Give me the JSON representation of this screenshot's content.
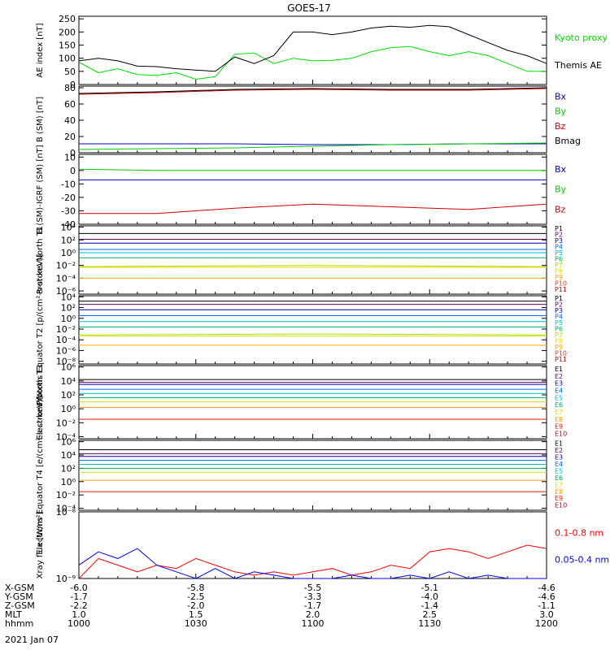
{
  "title": "GOES-17",
  "date_label": "2021 Jan 07",
  "chart_data": [
    {
      "type": "line",
      "ylabel": "AE index [nT]",
      "yticks": [
        0,
        50,
        100,
        150,
        200,
        250
      ],
      "ylim": [
        0,
        260
      ],
      "x": [
        1000,
        1005,
        1010,
        1015,
        1020,
        1025,
        1030,
        1035,
        1040,
        1045,
        1050,
        1055,
        1100,
        1105,
        1110,
        1115,
        1120,
        1125,
        1130,
        1135,
        1140,
        1145,
        1150,
        1155,
        1200
      ],
      "series": [
        {
          "name": "Kyoto proxy AE",
          "color": "#00dd00",
          "values": [
            85,
            45,
            60,
            38,
            35,
            45,
            20,
            30,
            115,
            120,
            80,
            100,
            90,
            92,
            100,
            125,
            140,
            145,
            125,
            110,
            125,
            110,
            80,
            50,
            50
          ]
        },
        {
          "name": "Themis AE",
          "color": "#000000",
          "values": [
            90,
            100,
            90,
            70,
            68,
            60,
            55,
            50,
            105,
            80,
            110,
            200,
            200,
            190,
            200,
            215,
            222,
            218,
            225,
            220,
            190,
            160,
            130,
            110,
            80
          ]
        }
      ]
    },
    {
      "type": "line",
      "ylabel": "B (SM) [nT]",
      "yticks": [
        0,
        20,
        40,
        60,
        80
      ],
      "ylim": [
        0,
        82
      ],
      "x": [
        1000,
        1020,
        1040,
        1100,
        1120,
        1140,
        1200
      ],
      "series": [
        {
          "name": "Bx",
          "color": "#0000cc",
          "values": [
            11,
            11,
            11,
            10,
            10,
            11,
            11
          ]
        },
        {
          "name": "By",
          "color": "#00cc00",
          "values": [
            4,
            5,
            6,
            8,
            10,
            11,
            12
          ]
        },
        {
          "name": "Bz",
          "color": "#cc0000",
          "values": [
            72,
            74,
            77,
            78,
            77,
            77,
            79
          ]
        },
        {
          "name": "Bmag",
          "color": "#000000",
          "values": [
            73,
            75,
            78,
            79,
            78,
            78,
            80
          ]
        }
      ]
    },
    {
      "type": "line",
      "ylabel": "B (SM)-IGRF (SM) [nT]",
      "yticks": [
        -40,
        -30,
        -20,
        -10,
        0,
        10
      ],
      "ylim": [
        -40,
        12
      ],
      "x": [
        1000,
        1020,
        1040,
        1100,
        1120,
        1140,
        1200
      ],
      "series": [
        {
          "name": "Bx",
          "color": "#0000cc",
          "values": [
            -7,
            -7,
            -7,
            -7,
            -7,
            -7,
            -7
          ]
        },
        {
          "name": "By",
          "color": "#00cc00",
          "values": [
            1,
            0,
            0,
            0,
            0,
            0,
            0
          ]
        },
        {
          "name": "Bz",
          "color": "#cc0000",
          "values": [
            -32,
            -32,
            -28,
            -25,
            -27,
            -29,
            -25
          ]
        }
      ]
    },
    {
      "type": "line",
      "ylabel": "Protons North T1",
      "log_scale": true,
      "yticks": [
        "10⁴",
        "10²",
        "10⁰",
        "10⁻²",
        "10⁻⁴",
        "10⁻⁶"
      ],
      "ylim": [
        -6.5,
        4.2
      ],
      "x": [
        1000,
        1100,
        1200
      ],
      "series": [
        {
          "name": "P1",
          "color": "#000000",
          "values": [
            3.0,
            3.0,
            3.0
          ]
        },
        {
          "name": "P2",
          "color": "#660066",
          "values": [
            2.1,
            2.1,
            2.1
          ]
        },
        {
          "name": "P3",
          "color": "#0000aa",
          "values": [
            1.5,
            1.5,
            1.5
          ]
        },
        {
          "name": "P4",
          "color": "#0066ff",
          "values": [
            0.5,
            0.5,
            0.5
          ]
        },
        {
          "name": "P5",
          "color": "#00bbbb",
          "values": [
            0.0,
            0.0,
            0.0
          ]
        },
        {
          "name": "P6",
          "color": "#00aa66",
          "values": [
            -0.8,
            -0.8,
            -0.8
          ]
        },
        {
          "name": "P7",
          "color": "#aadd00",
          "values": [
            -2.2,
            -2.0,
            -2.2
          ]
        },
        {
          "name": "P8",
          "color": "#dddd00",
          "values": [
            -2.3,
            -2.3,
            -2.3
          ]
        },
        {
          "name": "P9",
          "color": "#ffaa00",
          "values": [
            -4.0,
            -4.0,
            -4.0
          ]
        },
        {
          "name": "P10",
          "color": "#ff3300",
          "values": [
            null,
            null,
            null
          ]
        },
        {
          "name": "P11",
          "color": "#cc0000",
          "values": [
            null,
            null,
            null
          ]
        }
      ]
    },
    {
      "type": "line",
      "ylabel": "Protons Equator T2 [p/(cm²-s-sr-keV)]",
      "log_scale": true,
      "yticks": [
        "10⁴",
        "10²",
        "10⁰",
        "10⁻²",
        "10⁻⁴",
        "10⁻⁶",
        "10⁻⁸"
      ],
      "ylim": [
        -8.5,
        4.2
      ],
      "x": [
        1000,
        1100,
        1200
      ],
      "series": [
        {
          "name": "P1",
          "color": "#000000",
          "values": [
            3.2,
            3.2,
            3.2
          ]
        },
        {
          "name": "P2",
          "color": "#660066",
          "values": [
            2.6,
            2.6,
            2.6
          ]
        },
        {
          "name": "P3",
          "color": "#0000aa",
          "values": [
            1.6,
            1.6,
            1.6
          ]
        },
        {
          "name": "P4",
          "color": "#0066ff",
          "values": [
            0.5,
            0.5,
            0.5
          ]
        },
        {
          "name": "P5",
          "color": "#00bbbb",
          "values": [
            -0.6,
            -0.6,
            -0.6
          ]
        },
        {
          "name": "P6",
          "color": "#00aa66",
          "values": [
            -1.6,
            -1.6,
            -1.6
          ]
        },
        {
          "name": "P7",
          "color": "#aadd00",
          "values": [
            -3.1,
            -2.9,
            -3.1
          ]
        },
        {
          "name": "P8",
          "color": "#dddd00",
          "values": [
            -3.3,
            -3.3,
            -3.3
          ]
        },
        {
          "name": "P9",
          "color": "#ffaa00",
          "values": [
            -5.0,
            -5.0,
            -5.0
          ]
        },
        {
          "name": "P10",
          "color": "#ff3300",
          "values": [
            null,
            null,
            null
          ]
        },
        {
          "name": "P11",
          "color": "#cc0000",
          "values": [
            null,
            null,
            null
          ]
        }
      ]
    },
    {
      "type": "line",
      "ylabel": "Electrons North T3",
      "log_scale": true,
      "yticks": [
        "10⁶",
        "10⁴",
        "10²",
        "10⁰",
        "10⁻²",
        "10⁻⁴"
      ],
      "ylim": [
        -4.3,
        6.2
      ],
      "x": [
        1000,
        1100,
        1200
      ],
      "series": [
        {
          "name": "E1",
          "color": "#000000",
          "values": [
            4.2,
            4.2,
            4.2
          ]
        },
        {
          "name": "E2",
          "color": "#660066",
          "values": [
            3.8,
            3.8,
            3.8
          ]
        },
        {
          "name": "E3",
          "color": "#0000aa",
          "values": [
            3.5,
            3.5,
            3.5
          ]
        },
        {
          "name": "E4",
          "color": "#0066ff",
          "values": [
            2.8,
            2.8,
            2.8
          ]
        },
        {
          "name": "E5",
          "color": "#00bbbb",
          "values": [
            2.2,
            2.2,
            2.2
          ]
        },
        {
          "name": "E6",
          "color": "#00aa66",
          "values": [
            1.6,
            1.6,
            1.6
          ]
        },
        {
          "name": "E7",
          "color": "#dddd00",
          "values": [
            1.0,
            1.0,
            1.0
          ]
        },
        {
          "name": "E8",
          "color": "#ff9900",
          "values": [
            0.2,
            0.2,
            0.2
          ]
        },
        {
          "name": "E9",
          "color": "#dd2200",
          "values": [
            -1.5,
            -1.5,
            -1.5
          ]
        },
        {
          "name": "E10",
          "color": "#cc0000",
          "values": [
            null,
            null,
            null
          ]
        }
      ]
    },
    {
      "type": "line",
      "ylabel": "Electrons Equator T4 [e/(cm²-s-sr-keV)]",
      "log_scale": true,
      "yticks": [
        "10⁶",
        "10⁴",
        "10²",
        "10⁰",
        "10⁻²",
        "10⁻⁴"
      ],
      "ylim": [
        -4.3,
        6.2
      ],
      "x": [
        1000,
        1100,
        1200
      ],
      "series": [
        {
          "name": "E1",
          "color": "#000000",
          "values": [
            4.8,
            4.8,
            4.8
          ]
        },
        {
          "name": "E2",
          "color": "#660066",
          "values": [
            4.2,
            4.2,
            4.2
          ]
        },
        {
          "name": "E3",
          "color": "#0000aa",
          "values": [
            3.8,
            3.8,
            3.8
          ]
        },
        {
          "name": "E4",
          "color": "#0066ff",
          "values": [
            3.2,
            3.2,
            3.2
          ]
        },
        {
          "name": "E5",
          "color": "#00bbbb",
          "values": [
            2.6,
            2.6,
            2.6
          ]
        },
        {
          "name": "E6",
          "color": "#00aa66",
          "values": [
            2.0,
            2.0,
            2.0
          ]
        },
        {
          "name": "E7",
          "color": "#dddd00",
          "values": [
            1.4,
            1.4,
            1.4
          ]
        },
        {
          "name": "E8",
          "color": "#ff9900",
          "values": [
            0.2,
            0.2,
            0.2
          ]
        },
        {
          "name": "E9",
          "color": "#dd2200",
          "values": [
            -1.5,
            -1.5,
            -1.5
          ]
        },
        {
          "name": "E10",
          "color": "#cc0000",
          "values": [
            null,
            null,
            null
          ]
        }
      ]
    },
    {
      "type": "line",
      "ylabel": "Xray flux [W/m²]",
      "log_scale": true,
      "yticks": [
        "10⁻⁸",
        "10⁻⁹"
      ],
      "ylim": [
        -9.0,
        -8.0
      ],
      "x": [
        1000,
        1005,
        1010,
        1015,
        1020,
        1025,
        1030,
        1035,
        1040,
        1045,
        1050,
        1055,
        1100,
        1105,
        1110,
        1115,
        1120,
        1125,
        1130,
        1135,
        1140,
        1145,
        1150,
        1155,
        1200
      ],
      "series": [
        {
          "name": "0.1-0.8 nm",
          "color": "#ff0000",
          "values": [
            -9.0,
            -8.7,
            -8.8,
            -8.9,
            -8.8,
            -8.85,
            -8.7,
            -8.8,
            -8.9,
            -8.95,
            -8.9,
            -8.95,
            -8.9,
            -8.85,
            -8.95,
            -8.9,
            -8.8,
            -8.85,
            -8.6,
            -8.55,
            -8.6,
            -8.7,
            -8.6,
            -8.5,
            -8.55
          ]
        },
        {
          "name": "0.05-0.4 nm",
          "color": "#0000ff",
          "values": [
            -8.8,
            -8.6,
            -8.7,
            -8.55,
            -8.8,
            -8.9,
            -9.0,
            -8.85,
            -9.0,
            -8.9,
            -8.95,
            -9.0,
            -9.0,
            -9.0,
            -8.95,
            -9.0,
            -9.0,
            -8.95,
            -9.0,
            -8.9,
            -9.0,
            -8.95,
            -9.0,
            -9.0,
            -9.0
          ]
        }
      ]
    }
  ],
  "x_axis": {
    "row_labels": [
      "X-GSM",
      "Y-GSM",
      "Z-GSM",
      "MLT",
      "hhmm"
    ],
    "columns": [
      [
        "-6.0",
        "-1.7",
        "-2.2",
        "1.0",
        "1000"
      ],
      [
        "-5.8",
        "-2.5",
        "-2.0",
        "1.5",
        "1030"
      ],
      [
        "-5.5",
        "-3.3",
        "-1.7",
        "2.0",
        "1100"
      ],
      [
        "-5.1",
        "-4.0",
        "-1.4",
        "2.5",
        "1130"
      ],
      [
        "-4.6",
        "-4.6",
        "-1.1",
        "3.0",
        "1200"
      ]
    ]
  }
}
